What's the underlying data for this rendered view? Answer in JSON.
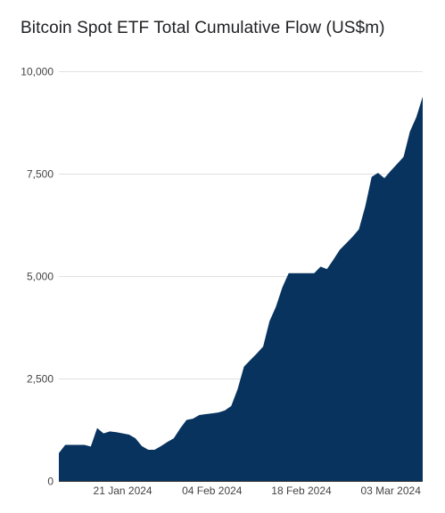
{
  "chart_data": {
    "type": "area",
    "title": "Bitcoin Spot ETF Total Cumulative Flow (US$m)",
    "xlabel": "",
    "ylabel": "",
    "ylim": [
      0,
      10000
    ],
    "y_ticks": [
      0,
      2500,
      5000,
      7500,
      10000
    ],
    "y_tick_labels": [
      "0",
      "2,500",
      "5,000",
      "7,500",
      "10,000"
    ],
    "x_ticks": [
      "2024-01-21",
      "2024-02-04",
      "2024-02-18",
      "2024-03-03"
    ],
    "x_tick_labels": [
      "21 Jan 2024",
      "04 Feb 2024",
      "18 Feb 2024",
      "03 Mar 2024"
    ],
    "grid": "horizontal",
    "legend": "none",
    "colors": {
      "fill": "#08335e",
      "grid": "#e0e0e0",
      "baseline": "#333333",
      "title": "#202124",
      "tick_text": "#444444"
    },
    "series": [
      {
        "x": [
          "2024-01-11",
          "2024-01-12",
          "2024-01-13",
          "2024-01-14",
          "2024-01-15",
          "2024-01-16",
          "2024-01-17",
          "2024-01-18",
          "2024-01-19",
          "2024-01-20",
          "2024-01-21",
          "2024-01-22",
          "2024-01-23",
          "2024-01-24",
          "2024-01-25",
          "2024-01-26",
          "2024-01-27",
          "2024-01-28",
          "2024-01-29",
          "2024-01-30",
          "2024-01-31",
          "2024-02-01",
          "2024-02-02",
          "2024-02-03",
          "2024-02-04",
          "2024-02-05",
          "2024-02-06",
          "2024-02-07",
          "2024-02-08",
          "2024-02-09",
          "2024-02-10",
          "2024-02-11",
          "2024-02-12",
          "2024-02-13",
          "2024-02-14",
          "2024-02-15",
          "2024-02-16",
          "2024-02-17",
          "2024-02-18",
          "2024-02-19",
          "2024-02-20",
          "2024-02-21",
          "2024-02-22",
          "2024-02-23",
          "2024-02-24",
          "2024-02-25",
          "2024-02-26",
          "2024-02-27",
          "2024-02-28",
          "2024-02-29",
          "2024-03-01",
          "2024-03-02",
          "2024-03-03",
          "2024-03-04",
          "2024-03-05",
          "2024-03-06",
          "2024-03-07",
          "2024-03-08"
        ],
        "values": [
          680,
          880,
          880,
          880,
          880,
          840,
          1290,
          1160,
          1210,
          1190,
          1160,
          1130,
          1040,
          850,
          760,
          760,
          850,
          950,
          1040,
          1280,
          1490,
          1520,
          1610,
          1630,
          1650,
          1670,
          1720,
          1830,
          2240,
          2790,
          2950,
          3110,
          3280,
          3900,
          4250,
          4720,
          5070,
          5070,
          5070,
          5070,
          5070,
          5230,
          5170,
          5400,
          5640,
          5800,
          5960,
          6140,
          6700,
          7420,
          7520,
          7390,
          7570,
          7740,
          7910,
          8530,
          8880,
          9380
        ]
      }
    ]
  }
}
